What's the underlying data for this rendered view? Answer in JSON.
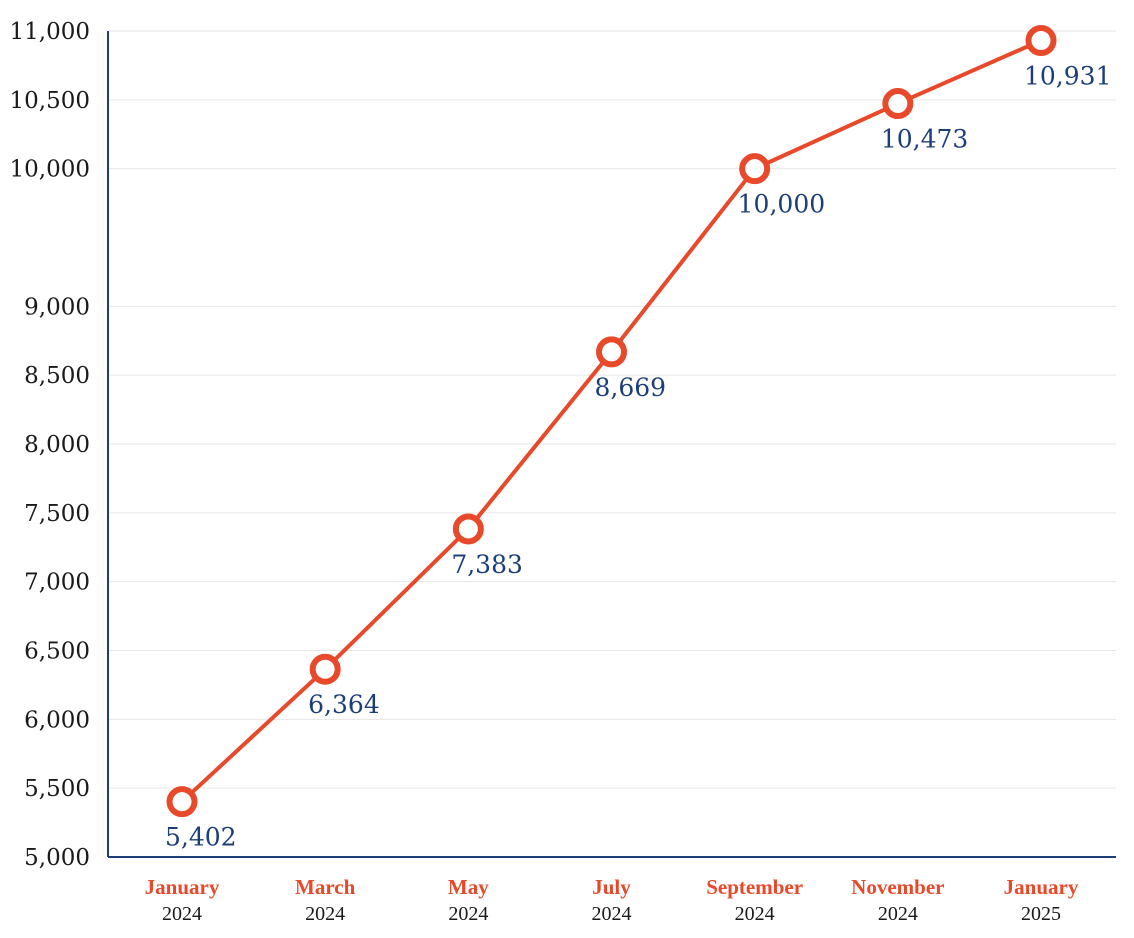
{
  "chart_data": {
    "type": "line",
    "categories": [
      {
        "month": "January",
        "year": "2024"
      },
      {
        "month": "March",
        "year": "2024"
      },
      {
        "month": "May",
        "year": "2024"
      },
      {
        "month": "July",
        "year": "2024"
      },
      {
        "month": "September",
        "year": "2024"
      },
      {
        "month": "November",
        "year": "2024"
      },
      {
        "month": "January",
        "year": "2025"
      }
    ],
    "series": [
      {
        "values": [
          5402,
          6364,
          7383,
          8669,
          10000,
          10473,
          10931
        ],
        "labels": [
          "5,402",
          "6,364",
          "7,383",
          "8,669",
          "10,000",
          "10,473",
          "10,931"
        ]
      }
    ],
    "yticks": [
      5000,
      5500,
      6000,
      6500,
      7000,
      7500,
      8000,
      8500,
      9000,
      10000,
      10500,
      11000
    ],
    "ytick_labels": [
      "5,000",
      "5,500",
      "6,000",
      "6,500",
      "7,000",
      "7,500",
      "8,000",
      "8,500",
      "9,000",
      "10,000",
      "10,500",
      "11,000"
    ],
    "ylim": [
      5000,
      11000
    ],
    "grid": true,
    "colors": {
      "line": "#e8492a",
      "marker_fill": "#ffffff",
      "data_label": "#1c3f7a",
      "month_label": "#e8492a",
      "year_label": "#1a1a1a",
      "axis": "#1c3f7a",
      "grid": "#e6e6e6"
    }
  }
}
